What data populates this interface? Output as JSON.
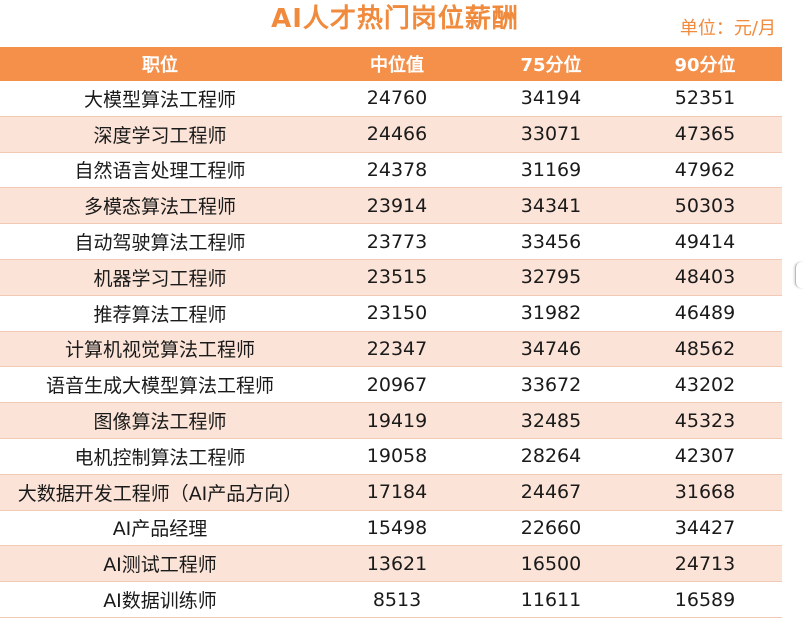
{
  "title": "AI人才热门岗位薪酬",
  "unit": "单位：元/月",
  "colors": {
    "accent": "#f08a3c",
    "header_bg": "#f5904a",
    "stripe": "#fbe3d7"
  },
  "headers": [
    "职位",
    "中位值",
    "75分位",
    "90分位"
  ],
  "rows": [
    [
      "大模型算法工程师",
      "24760",
      "34194",
      "52351"
    ],
    [
      "深度学习工程师",
      "24466",
      "33071",
      "47365"
    ],
    [
      "自然语言处理工程师",
      "24378",
      "31169",
      "47962"
    ],
    [
      "多模态算法工程师",
      "23914",
      "34341",
      "50303"
    ],
    [
      "自动驾驶算法工程师",
      "23773",
      "33456",
      "49414"
    ],
    [
      "机器学习工程师",
      "23515",
      "32795",
      "48403"
    ],
    [
      "推荐算法工程师",
      "23150",
      "31982",
      "46489"
    ],
    [
      "计算机视觉算法工程师",
      "22347",
      "34746",
      "48562"
    ],
    [
      "语音生成大模型算法工程师",
      "20967",
      "33672",
      "43202"
    ],
    [
      "图像算法工程师",
      "19419",
      "32485",
      "45323"
    ],
    [
      "电机控制算法工程师",
      "19058",
      "28264",
      "42307"
    ],
    [
      "大数据开发工程师（AI产品方向）",
      "17184",
      "24467",
      "31668"
    ],
    [
      "AI产品经理",
      "15498",
      "22660",
      "34427"
    ],
    [
      "AI测试工程师",
      "13621",
      "16500",
      "24713"
    ],
    [
      "AI数据训练师",
      "8513",
      "11611",
      "16589"
    ]
  ]
}
